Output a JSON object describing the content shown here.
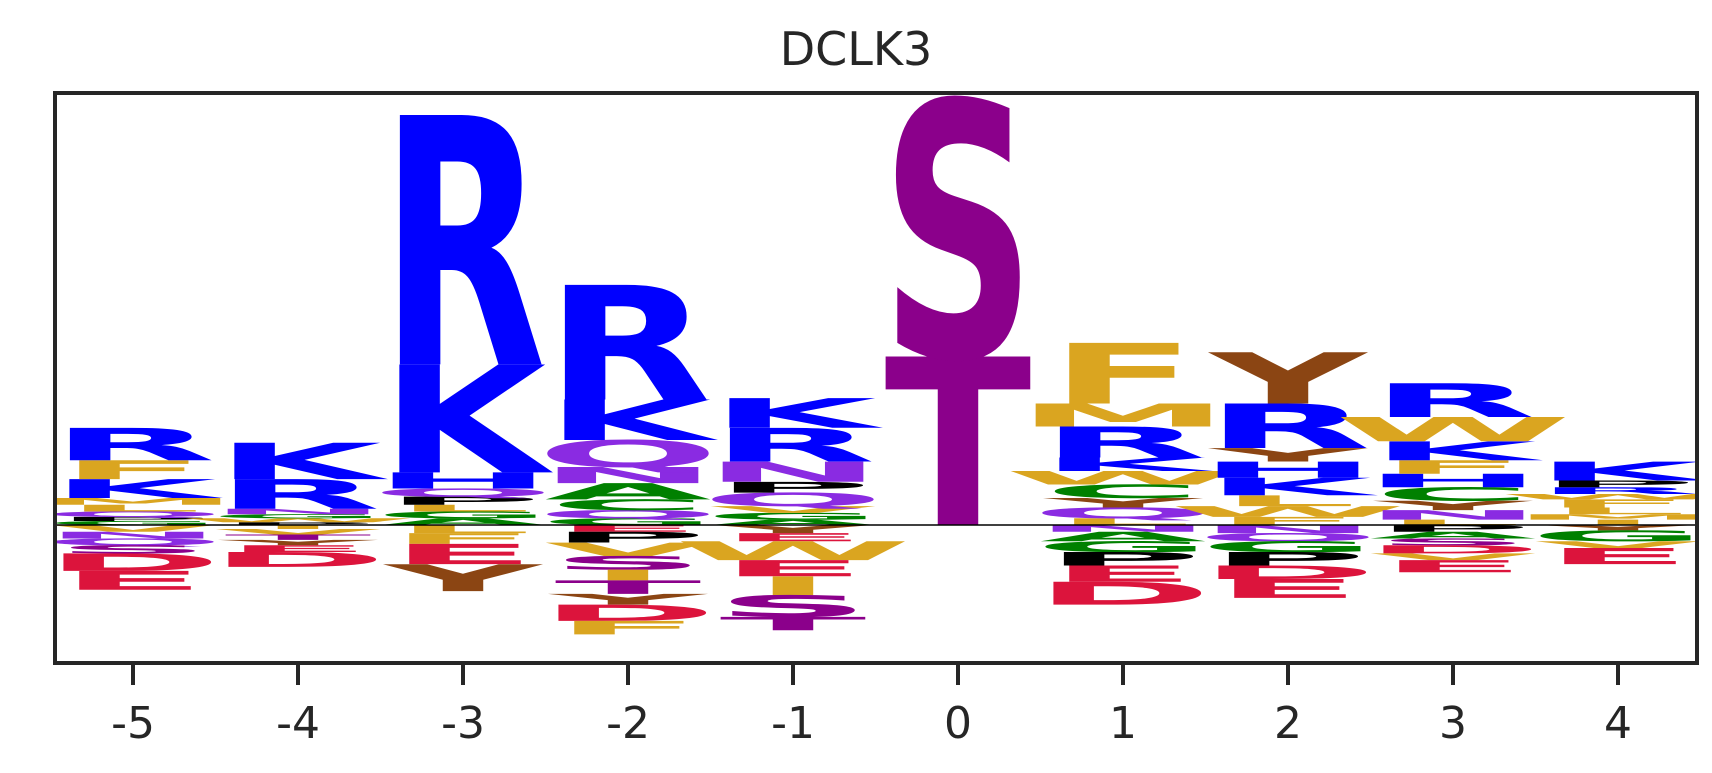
{
  "chart_data": {
    "type": "sequence-logo",
    "title": "DCLK3",
    "xlabel": "",
    "ylabel": "",
    "x_ticks": [
      "-5",
      "-4",
      "-3",
      "-2",
      "-1",
      "0",
      "1",
      "2",
      "3",
      "4"
    ],
    "ylim": [
      -1.0,
      3.2
    ],
    "grid": false,
    "colors": {
      "R": "#0000ff",
      "K": "#0000ff",
      "H": "#0000ff",
      "S": "#8b008b",
      "T": "#8b008b",
      "D": "#dc143c",
      "E": "#dc143c",
      "N": "#8a2be2",
      "Q": "#8a2be2",
      "G": "#008000",
      "A": "#008000",
      "C": "#008000",
      "P": "#000000",
      "F": "#daa520",
      "W": "#daa520",
      "Y": "#8b4513",
      "M": "#daa520",
      "L": "#daa520",
      "I": "#daa520",
      "V": "#daa520"
    },
    "positions": [
      {
        "pos": "-5",
        "positive": [
          [
            "R",
            0.24
          ],
          [
            "F",
            0.14
          ],
          [
            "K",
            0.14
          ],
          [
            "M",
            0.05
          ],
          [
            "L",
            0.05
          ],
          [
            "Q",
            0.04
          ],
          [
            "P",
            0.03
          ],
          [
            "G",
            0.03
          ]
        ],
        "negative": [
          [
            "V",
            0.05
          ],
          [
            "N",
            0.05
          ],
          [
            "Q",
            0.05
          ],
          [
            "S",
            0.06
          ],
          [
            "D",
            0.13
          ],
          [
            "E",
            0.14
          ]
        ]
      },
      {
        "pos": "-4",
        "positive": [
          [
            "K",
            0.27
          ],
          [
            "R",
            0.22
          ],
          [
            "N",
            0.04
          ],
          [
            "G",
            0.03
          ],
          [
            "W",
            0.03
          ],
          [
            "P",
            0.02
          ]
        ],
        "negative": [
          [
            "I",
            0.03
          ],
          [
            "V",
            0.04
          ],
          [
            "T",
            0.04
          ],
          [
            "Y",
            0.04
          ],
          [
            "E",
            0.05
          ],
          [
            "D",
            0.11
          ]
        ]
      },
      {
        "pos": "-3",
        "positive": [
          [
            "R",
            1.85
          ],
          [
            "K",
            0.8
          ],
          [
            "H",
            0.12
          ],
          [
            "Q",
            0.06
          ],
          [
            "P",
            0.06
          ],
          [
            "L",
            0.05
          ],
          [
            "G",
            0.05
          ],
          [
            "A",
            0.05
          ]
        ],
        "negative": [
          [
            "L",
            0.06
          ],
          [
            "F",
            0.08
          ],
          [
            "E",
            0.15
          ],
          [
            "Y",
            0.2
          ]
        ]
      },
      {
        "pos": "-2",
        "positive": [
          [
            "R",
            0.85
          ],
          [
            "K",
            0.3
          ],
          [
            "Q",
            0.2
          ],
          [
            "N",
            0.12
          ],
          [
            "A",
            0.12
          ],
          [
            "C",
            0.08
          ],
          [
            "Q",
            0.06
          ],
          [
            "G",
            0.05
          ]
        ],
        "negative": [
          [
            "E",
            0.05
          ],
          [
            "P",
            0.08
          ],
          [
            "V",
            0.1
          ],
          [
            "S",
            0.1
          ],
          [
            "I",
            0.08
          ],
          [
            "T",
            0.1
          ],
          [
            "Y",
            0.08
          ],
          [
            "D",
            0.12
          ],
          [
            "F",
            0.1
          ]
        ]
      },
      {
        "pos": "-1",
        "positive": [
          [
            "K",
            0.22
          ],
          [
            "R",
            0.25
          ],
          [
            "N",
            0.15
          ],
          [
            "P",
            0.08
          ],
          [
            "Q",
            0.1
          ],
          [
            "V",
            0.05
          ],
          [
            "G",
            0.05
          ],
          [
            "A",
            0.04
          ]
        ],
        "negative": [
          [
            "Y",
            0.06
          ],
          [
            "E",
            0.06
          ],
          [
            "W",
            0.14
          ],
          [
            "E",
            0.12
          ],
          [
            "I",
            0.14
          ],
          [
            "S",
            0.16
          ],
          [
            "T",
            0.1
          ]
        ]
      },
      {
        "pos": "0",
        "positive": [
          [
            "S",
            1.9
          ],
          [
            "T",
            1.25
          ]
        ],
        "negative": []
      },
      {
        "pos": "1",
        "positive": [
          [
            "F",
            0.45
          ],
          [
            "M",
            0.17
          ],
          [
            "R",
            0.23
          ],
          [
            "K",
            0.1
          ],
          [
            "W",
            0.1
          ],
          [
            "C",
            0.1
          ],
          [
            "Y",
            0.07
          ],
          [
            "Q",
            0.08
          ],
          [
            "L",
            0.05
          ]
        ],
        "negative": [
          [
            "N",
            0.05
          ],
          [
            "A",
            0.07
          ],
          [
            "G",
            0.08
          ],
          [
            "P",
            0.1
          ],
          [
            "E",
            0.12
          ],
          [
            "D",
            0.17
          ]
        ]
      },
      {
        "pos": "2",
        "positive": [
          [
            "Y",
            0.38
          ],
          [
            "R",
            0.33
          ],
          [
            "Y",
            0.1
          ],
          [
            "H",
            0.12
          ],
          [
            "K",
            0.13
          ],
          [
            "L",
            0.08
          ],
          [
            "W",
            0.08
          ],
          [
            "F",
            0.06
          ]
        ],
        "negative": [
          [
            "N",
            0.06
          ],
          [
            "Q",
            0.06
          ],
          [
            "G",
            0.08
          ],
          [
            "P",
            0.1
          ],
          [
            "D",
            0.1
          ],
          [
            "E",
            0.14
          ]
        ]
      },
      {
        "pos": "3",
        "positive": [
          [
            "R",
            0.25
          ],
          [
            "W",
            0.18
          ],
          [
            "K",
            0.14
          ],
          [
            "F",
            0.1
          ],
          [
            "H",
            0.1
          ],
          [
            "C",
            0.1
          ],
          [
            "Y",
            0.07
          ],
          [
            "N",
            0.07
          ],
          [
            "L",
            0.04
          ]
        ],
        "negative": [
          [
            "P",
            0.05
          ],
          [
            "A",
            0.05
          ],
          [
            "S",
            0.05
          ],
          [
            "D",
            0.06
          ],
          [
            "V",
            0.05
          ],
          [
            "E",
            0.09
          ]
        ]
      },
      {
        "pos": "4",
        "positive": [
          [
            "K",
            0.14
          ],
          [
            "P",
            0.05
          ],
          [
            "R",
            0.05
          ],
          [
            "W",
            0.04
          ],
          [
            "F",
            0.06
          ],
          [
            "L",
            0.05
          ],
          [
            "M",
            0.04
          ],
          [
            "I",
            0.04
          ]
        ],
        "negative": [
          [
            "Y",
            0.04
          ],
          [
            "G",
            0.08
          ],
          [
            "V",
            0.05
          ],
          [
            "E",
            0.12
          ]
        ]
      }
    ]
  }
}
